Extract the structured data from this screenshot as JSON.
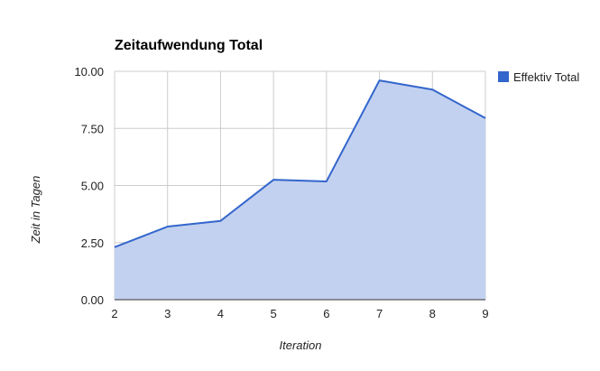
{
  "chart_data": {
    "type": "area",
    "title": "Zeitaufwendung Total",
    "xlabel": "Iteration",
    "ylabel": "Zeit in Tagen",
    "x": [
      2,
      3,
      4,
      5,
      6,
      7,
      8,
      9
    ],
    "series": [
      {
        "name": "Effektiv Total",
        "values": [
          2.3,
          3.2,
          3.45,
          5.25,
          5.18,
          9.6,
          9.2,
          7.95
        ],
        "color": "#3366cc",
        "fill": "#c3d1f0"
      }
    ],
    "xlim": [
      2,
      9
    ],
    "ylim": [
      0,
      10
    ],
    "yticks": [
      "0.00",
      "2.50",
      "5.00",
      "7.50",
      "10.00"
    ],
    "xticks": [
      "2",
      "3",
      "4",
      "5",
      "6",
      "7",
      "8",
      "9"
    ],
    "grid": true,
    "legend": "right"
  }
}
